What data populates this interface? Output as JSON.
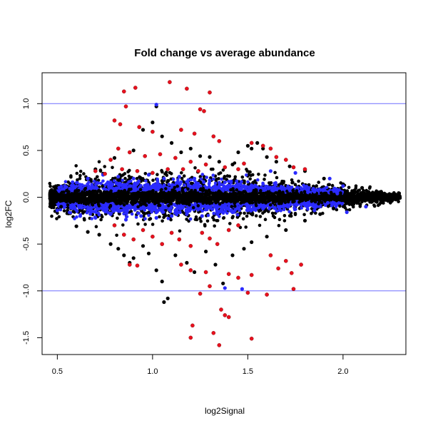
{
  "chart_data": {
    "type": "scatter",
    "title": "Fold change vs average abundance",
    "xlabel": "log2Signal",
    "ylabel": "log2FC",
    "xlim": [
      0.42,
      2.33
    ],
    "ylim": [
      -1.68,
      1.33
    ],
    "x_ticks": [
      0.5,
      1.0,
      1.5,
      2.0
    ],
    "x_tick_labels": [
      "0.5",
      "1.0",
      "1.5",
      "2.0"
    ],
    "y_ticks": [
      -1.5,
      -1.0,
      -0.5,
      0.0,
      0.5,
      1.0
    ],
    "y_tick_labels": [
      "-1.5",
      "-1.0",
      "-0.5",
      "0.0",
      "0.5",
      "1.0"
    ],
    "reference_lines": [
      {
        "orientation": "horizontal",
        "y": 1.0,
        "color": "#6f6fff"
      },
      {
        "orientation": "horizontal",
        "y": -1.0,
        "color": "#6f6fff"
      }
    ],
    "grid": false,
    "legend": "none",
    "series": [
      {
        "color": "#000000",
        "points": [
          [
            0.47,
            -0.05
          ],
          [
            0.49,
            0.06
          ],
          [
            0.52,
            -0.1
          ],
          [
            0.55,
            0.07
          ],
          [
            0.6,
            -0.31
          ],
          [
            0.66,
            -0.37
          ],
          [
            0.72,
            -0.4
          ],
          [
            0.78,
            -0.5
          ],
          [
            0.82,
            -0.55
          ],
          [
            0.85,
            -0.62
          ],
          [
            0.88,
            -0.7
          ],
          [
            0.9,
            -0.65
          ],
          [
            0.95,
            -0.52
          ],
          [
            0.98,
            -0.6
          ],
          [
            1.02,
            -0.78
          ],
          [
            1.05,
            -0.9
          ],
          [
            1.06,
            -1.12
          ],
          [
            1.08,
            -1.08
          ],
          [
            1.12,
            -0.62
          ],
          [
            1.18,
            -0.7
          ],
          [
            1.22,
            -0.8
          ],
          [
            1.28,
            -0.58
          ],
          [
            1.33,
            -0.72
          ],
          [
            1.37,
            -0.92
          ],
          [
            1.42,
            -0.62
          ],
          [
            1.48,
            -0.55
          ],
          [
            1.52,
            -0.48
          ],
          [
            1.6,
            -0.42
          ],
          [
            1.7,
            -0.35
          ],
          [
            1.8,
            -0.25
          ],
          [
            1.88,
            -0.18
          ],
          [
            1.95,
            -0.12
          ],
          [
            2.05,
            -0.08
          ],
          [
            2.15,
            -0.05
          ],
          [
            0.7,
            0.3
          ],
          [
            0.8,
            0.42
          ],
          [
            0.9,
            0.5
          ],
          [
            0.95,
            0.72
          ],
          [
            1.0,
            0.8
          ],
          [
            1.02,
            0.97
          ],
          [
            1.05,
            0.65
          ],
          [
            1.1,
            0.58
          ],
          [
            1.15,
            0.48
          ],
          [
            1.2,
            0.52
          ],
          [
            1.25,
            0.44
          ],
          [
            1.3,
            0.43
          ],
          [
            1.35,
            0.38
          ],
          [
            1.42,
            0.35
          ],
          [
            1.45,
            0.48
          ],
          [
            1.5,
            0.55
          ],
          [
            1.52,
            0.52
          ],
          [
            1.55,
            0.58
          ],
          [
            1.58,
            0.52
          ],
          [
            1.6,
            0.43
          ],
          [
            1.65,
            0.38
          ],
          [
            1.72,
            0.33
          ],
          [
            1.8,
            0.28
          ],
          [
            1.9,
            0.2
          ],
          [
            2.0,
            0.14
          ],
          [
            2.1,
            0.1
          ],
          [
            2.2,
            0.06
          ],
          [
            2.28,
            0.02
          ]
        ]
      },
      {
        "color": "#2b2bff",
        "points": [
          [
            0.5,
            -0.14
          ],
          [
            0.58,
            0.16
          ],
          [
            0.62,
            -0.2
          ],
          [
            0.66,
            0.2
          ],
          [
            0.7,
            -0.22
          ],
          [
            0.74,
            0.24
          ],
          [
            0.78,
            -0.18
          ],
          [
            0.82,
            0.22
          ],
          [
            0.86,
            -0.24
          ],
          [
            0.9,
            0.2
          ],
          [
            0.94,
            -0.2
          ],
          [
            0.98,
            0.24
          ],
          [
            1.02,
            -0.22
          ],
          [
            1.06,
            0.2
          ],
          [
            1.1,
            -0.2
          ],
          [
            1.14,
            0.22
          ],
          [
            1.18,
            -0.18
          ],
          [
            1.22,
            0.2
          ],
          [
            1.26,
            -0.2
          ],
          [
            1.3,
            0.18
          ],
          [
            1.34,
            -0.18
          ],
          [
            1.38,
            0.16
          ],
          [
            1.42,
            -0.16
          ],
          [
            1.46,
            0.14
          ],
          [
            1.5,
            -0.14
          ],
          [
            1.54,
            0.12
          ],
          [
            1.58,
            -0.12
          ],
          [
            1.62,
            0.1
          ],
          [
            1.66,
            -0.1
          ],
          [
            1.72,
            0.08
          ],
          [
            1.78,
            -0.08
          ],
          [
            1.85,
            0.06
          ],
          [
            1.92,
            -0.06
          ],
          [
            1.97,
            0.04
          ],
          [
            1.02,
            0.99
          ],
          [
            1.62,
            0.28
          ],
          [
            1.75,
            0.26
          ],
          [
            1.85,
            -0.14
          ],
          [
            1.93,
            0.2
          ],
          [
            2.02,
            -0.16
          ],
          [
            2.12,
            -0.1
          ],
          [
            2.0,
            0.12
          ],
          [
            1.47,
            -0.98
          ],
          [
            1.38,
            -0.97
          ]
        ]
      },
      {
        "color": "#e8101e",
        "points": [
          [
            0.85,
            1.13
          ],
          [
            0.91,
            1.17
          ],
          [
            1.09,
            1.23
          ],
          [
            1.18,
            1.16
          ],
          [
            1.3,
            1.12
          ],
          [
            0.86,
            0.97
          ],
          [
            1.25,
            0.94
          ],
          [
            1.27,
            0.92
          ],
          [
            0.8,
            0.82
          ],
          [
            0.83,
            0.78
          ],
          [
            0.93,
            0.75
          ],
          [
            1.0,
            0.7
          ],
          [
            1.15,
            0.72
          ],
          [
            1.22,
            0.68
          ],
          [
            1.35,
            0.6
          ],
          [
            1.32,
            0.65
          ],
          [
            1.52,
            0.58
          ],
          [
            1.62,
            0.52
          ],
          [
            1.58,
            0.55
          ],
          [
            0.78,
            0.4
          ],
          [
            0.82,
            0.52
          ],
          [
            0.88,
            0.48
          ],
          [
            0.96,
            0.44
          ],
          [
            1.04,
            0.46
          ],
          [
            1.12,
            0.42
          ],
          [
            1.2,
            0.38
          ],
          [
            1.28,
            0.35
          ],
          [
            1.38,
            0.32
          ],
          [
            1.45,
            0.3
          ],
          [
            1.48,
            0.36
          ],
          [
            1.7,
            0.4
          ],
          [
            1.74,
            0.32
          ],
          [
            1.65,
            0.43
          ],
          [
            1.8,
            0.3
          ],
          [
            0.7,
            0.28
          ],
          [
            0.75,
            0.25
          ],
          [
            0.84,
            0.3
          ],
          [
            0.92,
            0.28
          ],
          [
            1.0,
            0.26
          ],
          [
            1.08,
            0.3
          ],
          [
            1.16,
            0.3
          ],
          [
            1.24,
            0.28
          ],
          [
            0.8,
            -0.3
          ],
          [
            0.85,
            -0.4
          ],
          [
            0.9,
            -0.45
          ],
          [
            0.95,
            -0.35
          ],
          [
            1.0,
            -0.42
          ],
          [
            1.05,
            -0.5
          ],
          [
            1.1,
            -0.38
          ],
          [
            1.14,
            -0.45
          ],
          [
            1.2,
            -0.52
          ],
          [
            1.26,
            -0.38
          ],
          [
            1.3,
            -0.44
          ],
          [
            1.34,
            -0.5
          ],
          [
            1.4,
            -0.35
          ],
          [
            1.45,
            -0.3
          ],
          [
            0.88,
            -0.72
          ],
          [
            0.92,
            -0.73
          ],
          [
            1.15,
            -0.72
          ],
          [
            1.2,
            -0.78
          ],
          [
            1.28,
            -0.8
          ],
          [
            1.4,
            -0.82
          ],
          [
            1.45,
            -0.86
          ],
          [
            1.52,
            -0.83
          ],
          [
            1.62,
            -0.62
          ],
          [
            1.66,
            -0.76
          ],
          [
            1.7,
            -0.68
          ],
          [
            1.73,
            -0.81
          ],
          [
            1.25,
            -1.03
          ],
          [
            1.3,
            -0.95
          ],
          [
            1.36,
            -1.2
          ],
          [
            1.38,
            -1.26
          ],
          [
            1.4,
            -1.28
          ],
          [
            1.21,
            -1.37
          ],
          [
            1.2,
            -1.5
          ],
          [
            1.32,
            -1.45
          ],
          [
            1.35,
            -1.58
          ],
          [
            1.52,
            -1.51
          ],
          [
            1.5,
            -1.02
          ],
          [
            1.6,
            -1.04
          ],
          [
            1.74,
            -0.98
          ],
          [
            1.78,
            -0.72
          ]
        ]
      }
    ],
    "dense_cloud": {
      "description_counts": true,
      "main_color": "#000000",
      "band_color": "#2b2bff"
    }
  }
}
